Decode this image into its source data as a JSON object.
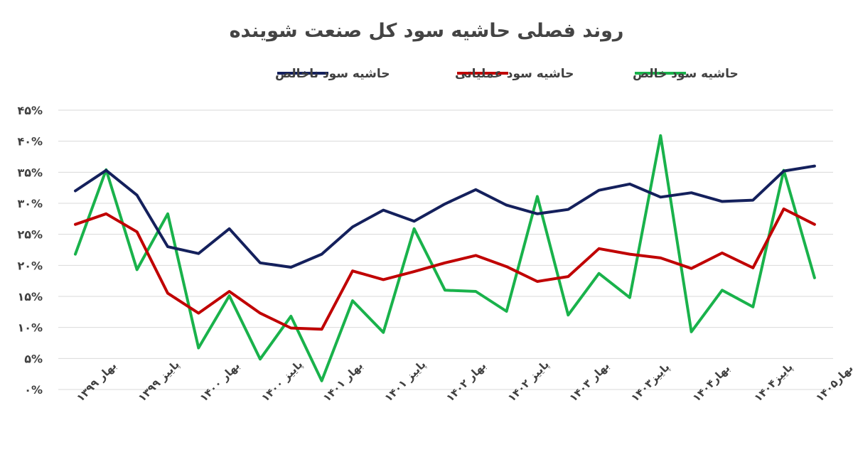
{
  "colors": {
    "gross": "#14205c",
    "operating": "#c00000",
    "net": "#19b24b"
  },
  "chart_data": {
    "type": "line",
    "title": "روند فصلی حاشیه سود کل صنعت شوینده",
    "ylim": [
      0,
      45
    ],
    "yticks": [
      "۰%",
      "۵%",
      "۱۰%",
      "۱۵%",
      "۲۰%",
      "۲۵%",
      "۳۰%",
      "۳۵%",
      "۴۰%",
      "۴۵%"
    ],
    "grid": true,
    "legend_position": "top",
    "x_tick_labels": [
      {
        "index": 0,
        "label": "بهار ۱۳۹۹"
      },
      {
        "index": 2,
        "label": "پاییز ۱۳۹۹"
      },
      {
        "index": 4,
        "label": "بهار ۱۴۰۰"
      },
      {
        "index": 6,
        "label": "پاییز ۱۴۰۰"
      },
      {
        "index": 8,
        "label": "بهار ۱۴۰۱"
      },
      {
        "index": 10,
        "label": "پاییز ۱۴۰۱"
      },
      {
        "index": 12,
        "label": "بهار ۱۴۰۲"
      },
      {
        "index": 14,
        "label": "پاییز ۱۴۰۲"
      },
      {
        "index": 16,
        "label": "بهار ۱۴۰۳"
      },
      {
        "index": 18,
        "label": "پاییز۱۴۰۳"
      },
      {
        "index": 20,
        "label": "بهار۱۴۰۴"
      },
      {
        "index": 22,
        "label": "پاییز۱۴۰۴"
      },
      {
        "index": 24,
        "label": "بهار۱۴۰۵"
      }
    ],
    "series": [
      {
        "name": "حاشیه سود ناخالص",
        "color_key": "gross",
        "values": [
          32,
          35.3,
          31.3,
          23,
          21.9,
          25.9,
          20.4,
          19.7,
          21.8,
          26.2,
          28.9,
          27.1,
          29.9,
          32.2,
          29.7,
          28.3,
          29,
          32.1,
          33.1,
          31,
          31.7,
          30.3,
          30.5,
          35.2,
          36
        ]
      },
      {
        "name": "حاشیه سود عملیاتی",
        "color_key": "operating",
        "values": [
          26.6,
          28.3,
          25.4,
          15.5,
          12.3,
          15.8,
          12.3,
          9.9,
          9.7,
          19.1,
          17.7,
          19,
          20.4,
          21.6,
          19.8,
          17.4,
          18.2,
          22.7,
          21.8,
          21.2,
          19.5,
          22,
          19.6,
          29.1,
          26.6
        ]
      },
      {
        "name": "حاشیه سود خالص",
        "color_key": "net",
        "values": [
          21.8,
          35.4,
          19.3,
          28.3,
          6.7,
          15.1,
          4.9,
          11.8,
          1.4,
          14.3,
          9.2,
          25.9,
          16,
          15.8,
          12.6,
          31.1,
          12,
          18.7,
          14.8,
          40.9,
          9.3,
          16,
          13.3,
          35.3,
          18
        ]
      }
    ]
  }
}
